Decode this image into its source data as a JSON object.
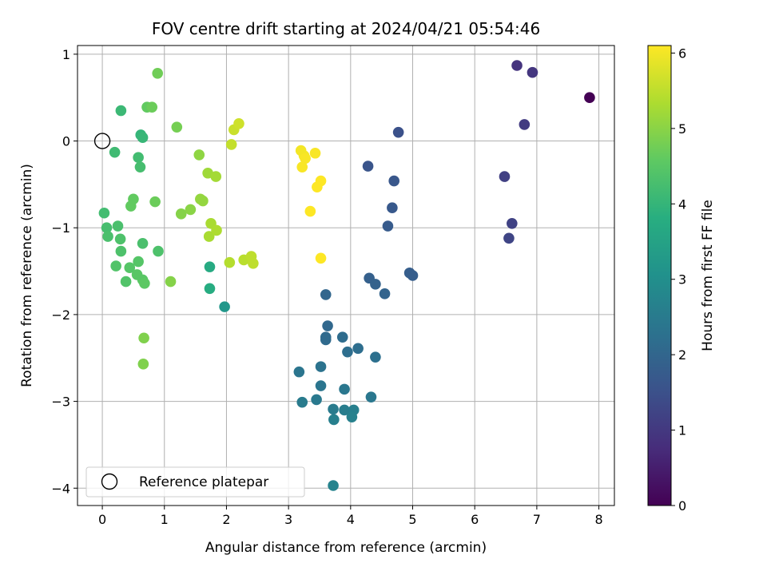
{
  "chart_data": {
    "type": "scatter",
    "title": "FOV centre drift starting at 2024/04/21 05:54:46",
    "xlabel": "Angular distance from reference (arcmin)",
    "ylabel": "Rotation from reference (arcmin)",
    "xlim": [
      -0.4,
      8.25
    ],
    "ylim": [
      -4.2,
      1.1
    ],
    "xticks": [
      0,
      1,
      2,
      3,
      4,
      5,
      6,
      7,
      8
    ],
    "yticks": [
      1,
      0,
      -1,
      -2,
      -3,
      -4
    ],
    "xtick_labels": [
      "0",
      "1",
      "2",
      "3",
      "4",
      "5",
      "6",
      "7",
      "8"
    ],
    "ytick_labels": [
      "1",
      "0",
      "−1",
      "−2",
      "−3",
      "−4"
    ],
    "grid": true,
    "legend": {
      "placement": "lower-left",
      "entries": [
        "Reference platepar"
      ]
    },
    "reference_point": {
      "x": 0,
      "y": 0
    },
    "colorbar": {
      "label": "Hours from first FF file",
      "colormap": "viridis",
      "range": [
        0,
        6.1
      ],
      "ticks": [
        0,
        1,
        2,
        3,
        4,
        5,
        6
      ],
      "tick_labels": [
        "0",
        "1",
        "2",
        "3",
        "4",
        "5",
        "6"
      ]
    },
    "points": [
      {
        "x": 7.85,
        "y": 0.5,
        "c": 0.0
      },
      {
        "x": 6.68,
        "y": 0.87,
        "c": 0.9
      },
      {
        "x": 6.93,
        "y": 0.79,
        "c": 0.95
      },
      {
        "x": 6.8,
        "y": 0.19,
        "c": 1.05
      },
      {
        "x": 6.48,
        "y": -0.41,
        "c": 1.15
      },
      {
        "x": 6.6,
        "y": -0.95,
        "c": 1.2
      },
      {
        "x": 6.55,
        "y": -1.12,
        "c": 1.25
      },
      {
        "x": 4.77,
        "y": 0.1,
        "c": 1.5
      },
      {
        "x": 4.28,
        "y": -0.29,
        "c": 1.6
      },
      {
        "x": 4.7,
        "y": -0.46,
        "c": 1.65
      },
      {
        "x": 4.67,
        "y": -0.77,
        "c": 1.7
      },
      {
        "x": 4.6,
        "y": -0.98,
        "c": 1.75
      },
      {
        "x": 4.95,
        "y": -1.52,
        "c": 1.8
      },
      {
        "x": 5.0,
        "y": -1.55,
        "c": 1.8
      },
      {
        "x": 4.3,
        "y": -1.58,
        "c": 1.85
      },
      {
        "x": 4.4,
        "y": -1.65,
        "c": 1.9
      },
      {
        "x": 4.55,
        "y": -1.76,
        "c": 1.95
      },
      {
        "x": 3.6,
        "y": -1.77,
        "c": 2.0
      },
      {
        "x": 3.63,
        "y": -2.13,
        "c": 2.05
      },
      {
        "x": 3.6,
        "y": -2.26,
        "c": 2.1
      },
      {
        "x": 3.6,
        "y": -2.29,
        "c": 2.1
      },
      {
        "x": 3.87,
        "y": -2.26,
        "c": 2.15
      },
      {
        "x": 3.95,
        "y": -2.43,
        "c": 2.2
      },
      {
        "x": 4.12,
        "y": -2.39,
        "c": 2.2
      },
      {
        "x": 4.4,
        "y": -2.49,
        "c": 2.25
      },
      {
        "x": 3.52,
        "y": -2.6,
        "c": 2.3
      },
      {
        "x": 3.17,
        "y": -2.66,
        "c": 2.35
      },
      {
        "x": 3.52,
        "y": -2.82,
        "c": 2.35
      },
      {
        "x": 3.9,
        "y": -2.86,
        "c": 2.4
      },
      {
        "x": 4.33,
        "y": -2.95,
        "c": 2.4
      },
      {
        "x": 3.45,
        "y": -2.98,
        "c": 2.45
      },
      {
        "x": 3.22,
        "y": -3.01,
        "c": 2.5
      },
      {
        "x": 3.72,
        "y": -3.09,
        "c": 2.5
      },
      {
        "x": 3.9,
        "y": -3.1,
        "c": 2.55
      },
      {
        "x": 4.05,
        "y": -3.1,
        "c": 2.6
      },
      {
        "x": 3.73,
        "y": -3.21,
        "c": 2.6
      },
      {
        "x": 4.02,
        "y": -3.18,
        "c": 2.65
      },
      {
        "x": 3.72,
        "y": -3.97,
        "c": 2.7
      },
      {
        "x": 1.97,
        "y": -1.91,
        "c": 3.2
      },
      {
        "x": 1.73,
        "y": -1.45,
        "c": 3.7
      },
      {
        "x": 1.73,
        "y": -1.7,
        "c": 3.75
      },
      {
        "x": 0.62,
        "y": 0.07,
        "c": 4.0
      },
      {
        "x": 0.65,
        "y": 0.04,
        "c": 4.05
      },
      {
        "x": 0.3,
        "y": 0.35,
        "c": 4.1
      },
      {
        "x": 0.2,
        "y": -0.13,
        "c": 4.15
      },
      {
        "x": 0.58,
        "y": -0.19,
        "c": 4.2
      },
      {
        "x": 0.61,
        "y": -0.3,
        "c": 4.25
      },
      {
        "x": 0.03,
        "y": -0.83,
        "c": 4.2
      },
      {
        "x": 0.07,
        "y": -1.0,
        "c": 4.25
      },
      {
        "x": 0.09,
        "y": -1.1,
        "c": 4.3
      },
      {
        "x": 0.25,
        "y": -0.98,
        "c": 4.3
      },
      {
        "x": 0.29,
        "y": -1.13,
        "c": 4.35
      },
      {
        "x": 0.3,
        "y": -1.27,
        "c": 4.35
      },
      {
        "x": 0.22,
        "y": -1.44,
        "c": 4.4
      },
      {
        "x": 0.38,
        "y": -1.62,
        "c": 4.4
      },
      {
        "x": 0.44,
        "y": -1.46,
        "c": 4.45
      },
      {
        "x": 0.58,
        "y": -1.39,
        "c": 4.45
      },
      {
        "x": 0.56,
        "y": -1.54,
        "c": 4.5
      },
      {
        "x": 0.65,
        "y": -1.6,
        "c": 4.5
      },
      {
        "x": 0.68,
        "y": -1.64,
        "c": 4.55
      },
      {
        "x": 0.65,
        "y": -1.18,
        "c": 4.3
      },
      {
        "x": 0.9,
        "y": -1.27,
        "c": 4.35
      },
      {
        "x": 0.5,
        "y": -0.67,
        "c": 4.6
      },
      {
        "x": 0.46,
        "y": -0.75,
        "c": 4.6
      },
      {
        "x": 0.85,
        "y": -0.7,
        "c": 4.7
      },
      {
        "x": 0.72,
        "y": 0.39,
        "c": 4.6
      },
      {
        "x": 0.8,
        "y": 0.39,
        "c": 4.7
      },
      {
        "x": 0.89,
        "y": 0.78,
        "c": 4.75
      },
      {
        "x": 1.2,
        "y": 0.16,
        "c": 4.8
      },
      {
        "x": 0.67,
        "y": -2.27,
        "c": 4.9
      },
      {
        "x": 0.66,
        "y": -2.57,
        "c": 4.9
      },
      {
        "x": 1.1,
        "y": -1.62,
        "c": 4.95
      },
      {
        "x": 1.27,
        "y": -0.84,
        "c": 4.95
      },
      {
        "x": 1.42,
        "y": -0.79,
        "c": 5.0
      },
      {
        "x": 1.56,
        "y": -0.16,
        "c": 5.05
      },
      {
        "x": 1.58,
        "y": -0.67,
        "c": 5.1
      },
      {
        "x": 1.62,
        "y": -0.69,
        "c": 5.1
      },
      {
        "x": 1.7,
        "y": -0.37,
        "c": 5.2
      },
      {
        "x": 1.83,
        "y": -0.41,
        "c": 5.25
      },
      {
        "x": 1.75,
        "y": -0.95,
        "c": 5.3
      },
      {
        "x": 1.72,
        "y": -1.1,
        "c": 5.3
      },
      {
        "x": 1.84,
        "y": -1.03,
        "c": 5.35
      },
      {
        "x": 2.05,
        "y": -1.4,
        "c": 5.4
      },
      {
        "x": 2.28,
        "y": -1.37,
        "c": 5.45
      },
      {
        "x": 2.4,
        "y": -1.33,
        "c": 5.5
      },
      {
        "x": 2.43,
        "y": -1.41,
        "c": 5.5
      },
      {
        "x": 2.08,
        "y": -0.04,
        "c": 5.55
      },
      {
        "x": 2.12,
        "y": 0.13,
        "c": 5.6
      },
      {
        "x": 2.2,
        "y": 0.2,
        "c": 5.65
      },
      {
        "x": 3.2,
        "y": -0.11,
        "c": 6.0
      },
      {
        "x": 3.25,
        "y": -0.17,
        "c": 6.0
      },
      {
        "x": 3.27,
        "y": -0.2,
        "c": 6.05
      },
      {
        "x": 3.22,
        "y": -0.3,
        "c": 6.05
      },
      {
        "x": 3.43,
        "y": -0.14,
        "c": 6.05
      },
      {
        "x": 3.52,
        "y": -0.46,
        "c": 6.1
      },
      {
        "x": 3.46,
        "y": -0.53,
        "c": 6.1
      },
      {
        "x": 3.35,
        "y": -0.81,
        "c": 6.1
      },
      {
        "x": 3.52,
        "y": -1.35,
        "c": 6.1
      }
    ]
  }
}
